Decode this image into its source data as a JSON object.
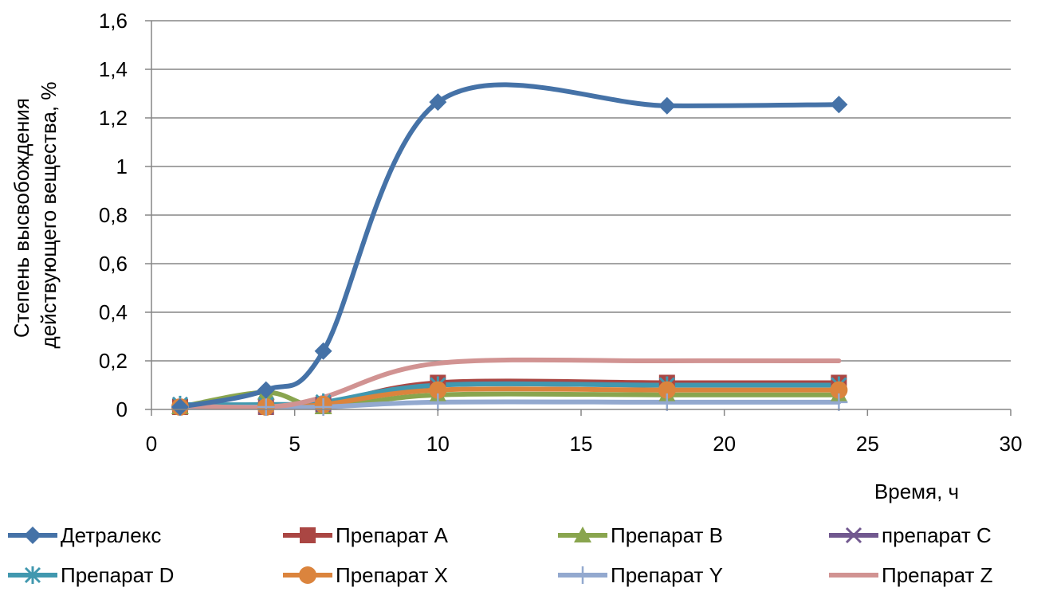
{
  "chart_data": {
    "type": "line",
    "xlabel": "Время, ч",
    "ylabel_lines": [
      "Степень высвобождения",
      "действующего вещества, %"
    ],
    "xlim": [
      0,
      30
    ],
    "ylim": [
      0,
      1.6
    ],
    "x_ticks": [
      "0",
      "5",
      "10",
      "15",
      "20",
      "25",
      "30"
    ],
    "y_ticks": [
      "0",
      "0,2",
      "0,4",
      "0,6",
      "0,8",
      "1",
      "1,2",
      "1,4",
      "1,6"
    ],
    "grid": "horizontal",
    "legend_position": "bottom",
    "x": [
      1,
      4,
      6,
      10,
      18,
      24
    ],
    "series": [
      {
        "name": "Детралекс",
        "color": "#4572a7",
        "marker": "diamond",
        "values": [
          0.01,
          0.08,
          0.24,
          1.265,
          1.25,
          1.255
        ]
      },
      {
        "name": "Препарат А",
        "color": "#aa4643",
        "marker": "square",
        "values": [
          0.01,
          0.01,
          0.02,
          0.11,
          0.11,
          0.11
        ]
      },
      {
        "name": "Препарат В",
        "color": "#89a54e",
        "marker": "triangle",
        "values": [
          0.01,
          0.07,
          0.01,
          0.06,
          0.06,
          0.06
        ]
      },
      {
        "name": "препарат С",
        "color": "#71588f",
        "marker": "x",
        "values": [
          0.02,
          0.01,
          0.02,
          0.1,
          0.1,
          0.1
        ]
      },
      {
        "name": "Препарат D",
        "color": "#4198af",
        "marker": "asterisk",
        "values": [
          0.02,
          0.02,
          0.03,
          0.1,
          0.1,
          0.1
        ]
      },
      {
        "name": "Препарат X",
        "color": "#db843d",
        "marker": "circle",
        "values": [
          0.01,
          0.01,
          0.02,
          0.08,
          0.08,
          0.08
        ]
      },
      {
        "name": "Препарат Y",
        "color": "#93a9cf",
        "marker": "plus",
        "values": [
          0.01,
          0.01,
          0.01,
          0.03,
          0.03,
          0.03
        ]
      },
      {
        "name": "Препарат Z",
        "color": "#d19392",
        "marker": "none",
        "values": [
          0.015,
          0.01,
          0.05,
          0.19,
          0.2,
          0.2
        ]
      }
    ]
  }
}
